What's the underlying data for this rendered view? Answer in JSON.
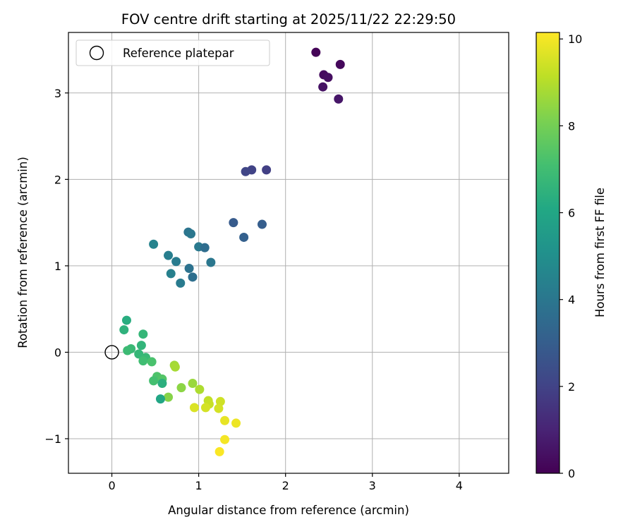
{
  "chart_data": {
    "type": "scatter",
    "title": "FOV centre drift starting at 2025/11/22 22:29:50",
    "xlabel": "Angular distance from reference (arcmin)",
    "ylabel": "Rotation from reference (arcmin)",
    "xlim": [
      -0.5,
      4.57
    ],
    "ylim": [
      -1.4,
      3.7
    ],
    "xticks": [
      0,
      1,
      2,
      3,
      4
    ],
    "xtick_labels": [
      "0",
      "1",
      "2",
      "3",
      "4"
    ],
    "yticks": [
      -1,
      0,
      1,
      2,
      3
    ],
    "ytick_labels": [
      "−1",
      "0",
      "1",
      "2",
      "3"
    ],
    "grid": true,
    "legend": {
      "position": "top-left",
      "entries": [
        "Reference platepar"
      ]
    },
    "reference_point": {
      "x": 0,
      "y": 0,
      "label": "Reference platepar"
    },
    "colorbar": {
      "label": "Hours from first FF file",
      "colormap": "viridis",
      "range": [
        0,
        10.15
      ],
      "ticks": [
        0,
        2,
        4,
        6,
        8,
        10
      ],
      "tick_labels": [
        "0",
        "2",
        "4",
        "6",
        "8",
        "10"
      ]
    },
    "points": [
      {
        "x": 2.35,
        "y": 3.47,
        "c": 0.1
      },
      {
        "x": 2.63,
        "y": 3.33,
        "c": 0.2
      },
      {
        "x": 2.44,
        "y": 3.21,
        "c": 0.3
      },
      {
        "x": 2.49,
        "y": 3.18,
        "c": 0.4
      },
      {
        "x": 2.43,
        "y": 3.07,
        "c": 0.5
      },
      {
        "x": 2.61,
        "y": 2.93,
        "c": 0.6
      },
      {
        "x": 1.78,
        "y": 2.11,
        "c": 1.9
      },
      {
        "x": 1.61,
        "y": 2.11,
        "c": 2.0
      },
      {
        "x": 1.54,
        "y": 2.09,
        "c": 2.1
      },
      {
        "x": 1.4,
        "y": 1.5,
        "c": 2.9
      },
      {
        "x": 1.73,
        "y": 1.48,
        "c": 3.0
      },
      {
        "x": 1.52,
        "y": 1.33,
        "c": 3.1
      },
      {
        "x": 0.88,
        "y": 1.39,
        "c": 3.9
      },
      {
        "x": 0.91,
        "y": 1.37,
        "c": 4.0
      },
      {
        "x": 0.48,
        "y": 1.25,
        "c": 4.5
      },
      {
        "x": 1.0,
        "y": 1.22,
        "c": 4.1
      },
      {
        "x": 1.07,
        "y": 1.21,
        "c": 3.6
      },
      {
        "x": 0.65,
        "y": 1.12,
        "c": 4.3
      },
      {
        "x": 0.74,
        "y": 1.05,
        "c": 4.2
      },
      {
        "x": 1.14,
        "y": 1.04,
        "c": 4.0
      },
      {
        "x": 0.89,
        "y": 0.97,
        "c": 3.8
      },
      {
        "x": 0.68,
        "y": 0.91,
        "c": 4.4
      },
      {
        "x": 0.93,
        "y": 0.87,
        "c": 3.7
      },
      {
        "x": 0.79,
        "y": 0.8,
        "c": 4.2
      },
      {
        "x": 0.17,
        "y": 0.37,
        "c": 6.3
      },
      {
        "x": 0.14,
        "y": 0.26,
        "c": 6.5
      },
      {
        "x": 0.36,
        "y": 0.21,
        "c": 6.7
      },
      {
        "x": 0.34,
        "y": 0.08,
        "c": 6.6
      },
      {
        "x": 0.22,
        "y": 0.04,
        "c": 6.8
      },
      {
        "x": 0.18,
        "y": 0.02,
        "c": 6.9
      },
      {
        "x": 0.31,
        "y": -0.02,
        "c": 6.7
      },
      {
        "x": 0.39,
        "y": -0.06,
        "c": 6.8
      },
      {
        "x": 0.36,
        "y": -0.1,
        "c": 7.0
      },
      {
        "x": 0.46,
        "y": -0.11,
        "c": 7.2
      },
      {
        "x": 0.52,
        "y": -0.28,
        "c": 7.3
      },
      {
        "x": 0.48,
        "y": -0.33,
        "c": 7.1
      },
      {
        "x": 0.58,
        "y": -0.31,
        "c": 7.4
      },
      {
        "x": 0.58,
        "y": -0.36,
        "c": 6.4
      },
      {
        "x": 0.72,
        "y": -0.15,
        "c": 8.7
      },
      {
        "x": 0.73,
        "y": -0.17,
        "c": 8.8
      },
      {
        "x": 0.65,
        "y": -0.52,
        "c": 8.3
      },
      {
        "x": 0.56,
        "y": -0.54,
        "c": 6.0
      },
      {
        "x": 0.8,
        "y": -0.41,
        "c": 8.4
      },
      {
        "x": 0.93,
        "y": -0.36,
        "c": 8.6
      },
      {
        "x": 1.01,
        "y": -0.43,
        "c": 8.9
      },
      {
        "x": 1.11,
        "y": -0.56,
        "c": 9.2
      },
      {
        "x": 1.12,
        "y": -0.6,
        "c": 9.3
      },
      {
        "x": 1.25,
        "y": -0.57,
        "c": 9.4
      },
      {
        "x": 1.23,
        "y": -0.65,
        "c": 9.5
      },
      {
        "x": 0.95,
        "y": -0.64,
        "c": 9.6
      },
      {
        "x": 1.08,
        "y": -0.64,
        "c": 9.5
      },
      {
        "x": 1.3,
        "y": -0.79,
        "c": 9.8
      },
      {
        "x": 1.43,
        "y": -0.82,
        "c": 9.9
      },
      {
        "x": 1.3,
        "y": -1.01,
        "c": 10.0
      },
      {
        "x": 1.24,
        "y": -1.15,
        "c": 10.1
      }
    ]
  }
}
